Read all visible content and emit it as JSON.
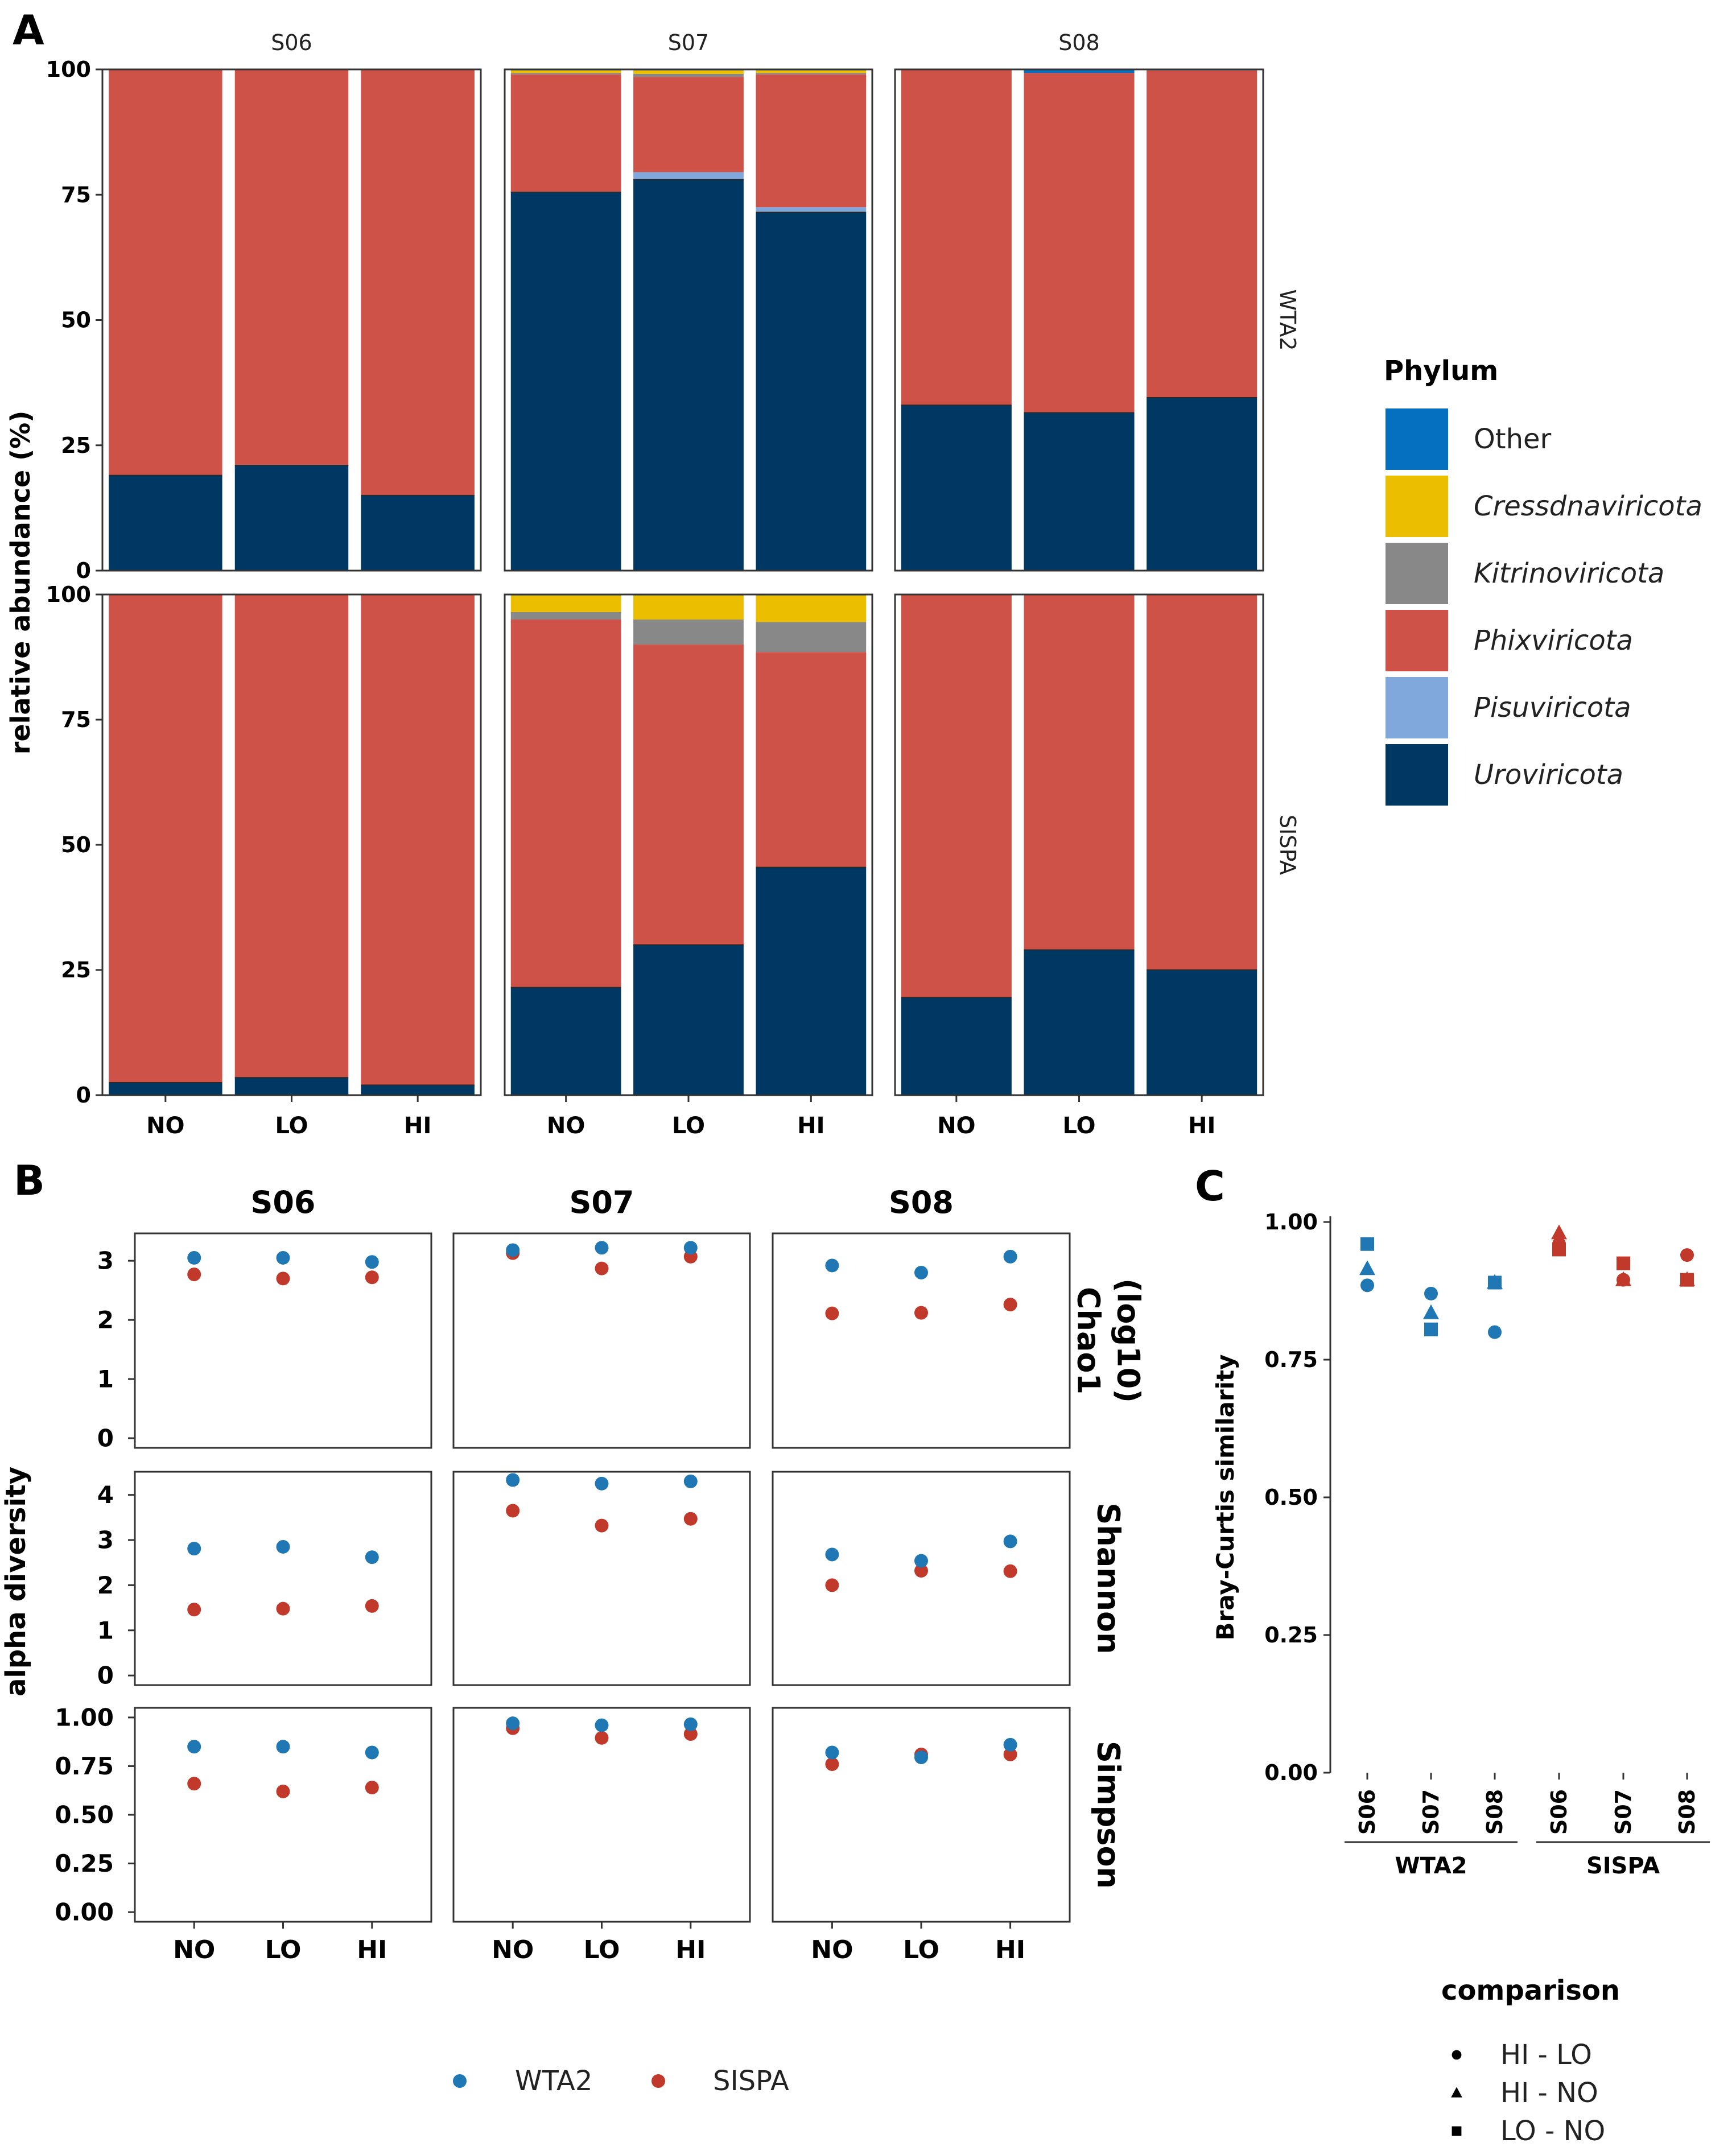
{
  "panel_labels": {
    "a": "A",
    "b": "B",
    "c": "C"
  },
  "colors": {
    "Other": "#0570c0",
    "Cressdnaviricota": "#ecbe00",
    "Kitrinoviricota": "#888888",
    "Phixviricota": "#cf5249",
    "Pisuviricota": "#80a8dc",
    "Uroviricota": "#003864",
    "WTA2": "#1f77b4",
    "SISPA": "#c0392b"
  },
  "chart_data": [
    {
      "id": "A",
      "type": "bar",
      "stacked": true,
      "ylabel": "relative abundance (%)",
      "ylim": [
        0,
        100
      ],
      "yticks": [
        "0",
        "25",
        "50",
        "75",
        "100"
      ],
      "samples": [
        "S06",
        "S07",
        "S08"
      ],
      "methods": [
        "WTA2",
        "SISPA"
      ],
      "categories": [
        "NO",
        "LO",
        "HI"
      ],
      "legend": {
        "title": "Phylum",
        "items": [
          "Other",
          "Cressdnaviricota",
          "Kitrinoviricota",
          "Phixviricota",
          "Pisuviricota",
          "Uroviricota"
        ],
        "italic": [
          false,
          true,
          true,
          true,
          true,
          true
        ]
      },
      "stack_order": [
        "Uroviricota",
        "Pisuviricota",
        "Phixviricota",
        "Kitrinoviricota",
        "Cressdnaviricota",
        "Other"
      ],
      "values": {
        "WTA2": {
          "S06": [
            {
              "Uroviricota": 19,
              "Pisuviricota": 0,
              "Phixviricota": 81,
              "Kitrinoviricota": 0,
              "Cressdnaviricota": 0,
              "Other": 0
            },
            {
              "Uroviricota": 21,
              "Pisuviricota": 0,
              "Phixviricota": 79,
              "Kitrinoviricota": 0,
              "Cressdnaviricota": 0,
              "Other": 0
            },
            {
              "Uroviricota": 15,
              "Pisuviricota": 0,
              "Phixviricota": 85,
              "Kitrinoviricota": 0,
              "Cressdnaviricota": 0,
              "Other": 0
            }
          ],
          "S07": [
            {
              "Uroviricota": 75.5,
              "Pisuviricota": 0,
              "Phixviricota": 23.5,
              "Kitrinoviricota": 0.3,
              "Cressdnaviricota": 0.5,
              "Other": 0.2
            },
            {
              "Uroviricota": 78,
              "Pisuviricota": 1.5,
              "Phixviricota": 19,
              "Kitrinoviricota": 0.6,
              "Cressdnaviricota": 0.7,
              "Other": 0.2
            },
            {
              "Uroviricota": 71.5,
              "Pisuviricota": 1,
              "Phixviricota": 26.5,
              "Kitrinoviricota": 0.3,
              "Cressdnaviricota": 0.5,
              "Other": 0.2
            }
          ],
          "S08": [
            {
              "Uroviricota": 33,
              "Pisuviricota": 0,
              "Phixviricota": 67,
              "Kitrinoviricota": 0,
              "Cressdnaviricota": 0,
              "Other": 0
            },
            {
              "Uroviricota": 31.5,
              "Pisuviricota": 0,
              "Phixviricota": 67.8,
              "Kitrinoviricota": 0,
              "Cressdnaviricota": 0,
              "Other": 0.7
            },
            {
              "Uroviricota": 34.5,
              "Pisuviricota": 0,
              "Phixviricota": 65.3,
              "Kitrinoviricota": 0,
              "Cressdnaviricota": 0,
              "Other": 0.2
            }
          ]
        },
        "SISPA": {
          "S06": [
            {
              "Uroviricota": 2.5,
              "Pisuviricota": 0,
              "Phixviricota": 97.5,
              "Kitrinoviricota": 0,
              "Cressdnaviricota": 0,
              "Other": 0
            },
            {
              "Uroviricota": 3.5,
              "Pisuviricota": 0,
              "Phixviricota": 96.5,
              "Kitrinoviricota": 0,
              "Cressdnaviricota": 0,
              "Other": 0
            },
            {
              "Uroviricota": 2,
              "Pisuviricota": 0,
              "Phixviricota": 98,
              "Kitrinoviricota": 0,
              "Cressdnaviricota": 0,
              "Other": 0
            }
          ],
          "S07": [
            {
              "Uroviricota": 21.5,
              "Pisuviricota": 0,
              "Phixviricota": 73.5,
              "Kitrinoviricota": 1.5,
              "Cressdnaviricota": 3.3,
              "Other": 0.2
            },
            {
              "Uroviricota": 30,
              "Pisuviricota": 0,
              "Phixviricota": 60,
              "Kitrinoviricota": 5,
              "Cressdnaviricota": 4.8,
              "Other": 0.2
            },
            {
              "Uroviricota": 45.5,
              "Pisuviricota": 0,
              "Phixviricota": 43,
              "Kitrinoviricota": 6,
              "Cressdnaviricota": 5.3,
              "Other": 0.2
            }
          ],
          "S08": [
            {
              "Uroviricota": 19.5,
              "Pisuviricota": 0,
              "Phixviricota": 80.5,
              "Kitrinoviricota": 0,
              "Cressdnaviricota": 0,
              "Other": 0
            },
            {
              "Uroviricota": 29,
              "Pisuviricota": 0,
              "Phixviricota": 71,
              "Kitrinoviricota": 0,
              "Cressdnaviricota": 0,
              "Other": 0
            },
            {
              "Uroviricota": 25,
              "Pisuviricota": 0,
              "Phixviricota": 75,
              "Kitrinoviricota": 0,
              "Cressdnaviricota": 0,
              "Other": 0
            }
          ]
        }
      }
    },
    {
      "id": "B",
      "type": "scatter",
      "ylabel": "alpha diversity",
      "samples": [
        "S06",
        "S07",
        "S08"
      ],
      "categories": [
        "NO",
        "LO",
        "HI"
      ],
      "metric_labels": [
        [
          "Chao1",
          "(log10)"
        ],
        [
          "Shannon"
        ],
        [
          "Simpson"
        ]
      ],
      "legend_items": [
        "WTA2",
        "SISPA"
      ],
      "metrics": [
        {
          "name": "Chao1 (log10)",
          "ylim": [
            0,
            3.3
          ],
          "ticks": [
            0,
            1,
            2,
            3
          ],
          "tick_labels": [
            "0",
            "1",
            "2",
            "3"
          ],
          "WTA2": {
            "S06": [
              3.05,
              3.05,
              2.98
            ],
            "S07": [
              3.18,
              3.22,
              3.22
            ],
            "S08": [
              2.92,
              2.8,
              3.07
            ]
          },
          "SISPA": {
            "S06": [
              2.77,
              2.7,
              2.72
            ],
            "S07": [
              3.13,
              2.87,
              3.07
            ],
            "S08": [
              2.11,
              2.12,
              2.26
            ]
          }
        },
        {
          "name": "Shannon",
          "ylim": [
            0,
            4.3
          ],
          "ticks": [
            0,
            1,
            2,
            3,
            4
          ],
          "tick_labels": [
            "0",
            "1",
            "2",
            "3",
            "4"
          ],
          "WTA2": {
            "S06": [
              2.81,
              2.85,
              2.62
            ],
            "S07": [
              4.33,
              4.25,
              4.3
            ],
            "S08": [
              2.68,
              2.54,
              2.97
            ]
          },
          "SISPA": {
            "S06": [
              1.46,
              1.48,
              1.54
            ],
            "S07": [
              3.65,
              3.32,
              3.47
            ],
            "S08": [
              2.0,
              2.32,
              2.31
            ]
          }
        },
        {
          "name": "Simpson",
          "ylim": [
            0,
            1.0
          ],
          "ticks": [
            0,
            0.25,
            0.5,
            0.75,
            1.0
          ],
          "tick_labels": [
            "0.00",
            "0.25",
            "0.50",
            "0.75",
            "1.00"
          ],
          "WTA2": {
            "S06": [
              0.85,
              0.85,
              0.82
            ],
            "S07": [
              0.97,
              0.96,
              0.965
            ],
            "S08": [
              0.82,
              0.795,
              0.86
            ]
          },
          "SISPA": {
            "S06": [
              0.66,
              0.62,
              0.64
            ],
            "S07": [
              0.945,
              0.895,
              0.915
            ],
            "S08": [
              0.76,
              0.81,
              0.81
            ]
          }
        }
      ]
    },
    {
      "id": "C",
      "type": "scatter",
      "ylabel": "Bray-Curtis similarity",
      "ylim": [
        0,
        1.0
      ],
      "yticks": [
        0,
        0.25,
        0.5,
        0.75,
        1.0
      ],
      "ytick_labels": [
        "0.00",
        "0.25",
        "0.50",
        "0.75",
        "1.00"
      ],
      "x": [
        "S06",
        "S07",
        "S08",
        "S06",
        "S07",
        "S08"
      ],
      "groups": [
        {
          "label": "WTA2",
          "span": [
            0,
            2
          ]
        },
        {
          "label": "SISPA",
          "span": [
            3,
            5
          ]
        }
      ],
      "legend_title": "comparison",
      "legend_items": [
        "HI - LO",
        "HI - NO",
        "LO - NO"
      ],
      "series": [
        {
          "name": "HI - LO",
          "shape": "circle",
          "values": [
            0.885,
            0.87,
            0.8,
            0.96,
            0.895,
            0.94
          ]
        },
        {
          "name": "HI - NO",
          "shape": "triangle",
          "values": [
            0.915,
            0.835,
            0.89,
            0.98,
            0.895,
            0.895
          ]
        },
        {
          "name": "LO - NO",
          "shape": "square",
          "values": [
            0.96,
            0.805,
            0.89,
            0.95,
            0.925,
            0.895
          ]
        }
      ],
      "point_colors": [
        "WTA2",
        "WTA2",
        "WTA2",
        "SISPA",
        "SISPA",
        "SISPA"
      ]
    }
  ]
}
